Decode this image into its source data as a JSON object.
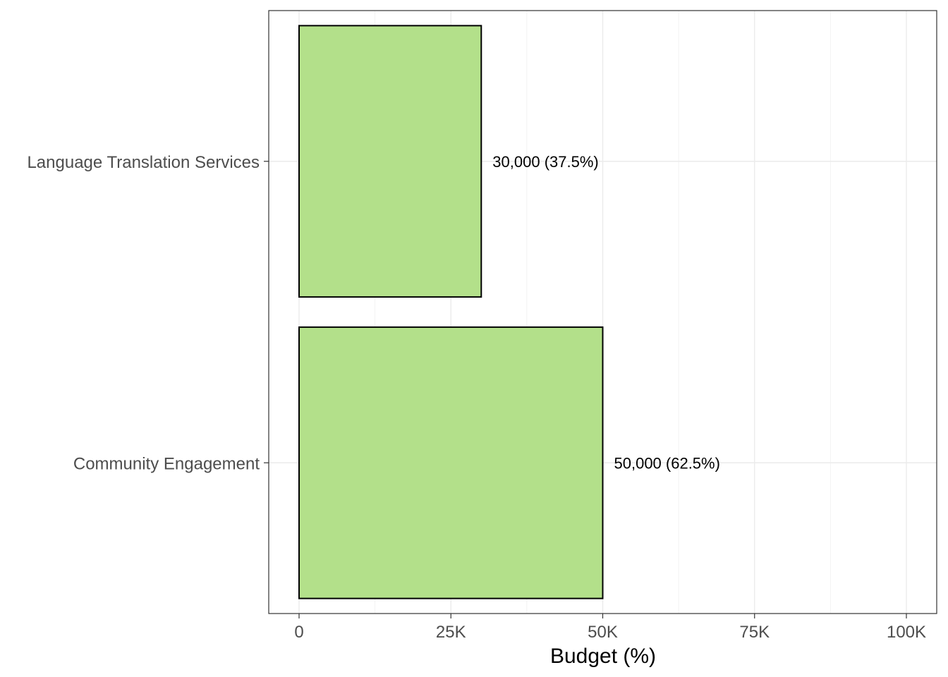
{
  "chart_data": {
    "type": "bar",
    "orientation": "horizontal",
    "categories": [
      "Community Engagement",
      "Language Translation Services"
    ],
    "values": [
      50000,
      30000
    ],
    "bar_labels": [
      "50,000 (62.5%)",
      "30,000 (37.5%)"
    ],
    "xlabel": "Budget (%)",
    "ylabel": "",
    "xlim": [
      0,
      100000
    ],
    "x_ticks": [
      0,
      25000,
      50000,
      75000,
      100000
    ],
    "x_tick_labels": [
      "0",
      "25K",
      "50K",
      "75K",
      "100K"
    ],
    "grid": true,
    "legend": "none",
    "colors": {
      "bar_fill": "#b3e08a",
      "bar_stroke": "#000000",
      "grid_major": "#ebebeb",
      "grid_minor": "#f2f2f2",
      "panel_border": "#333333"
    }
  }
}
